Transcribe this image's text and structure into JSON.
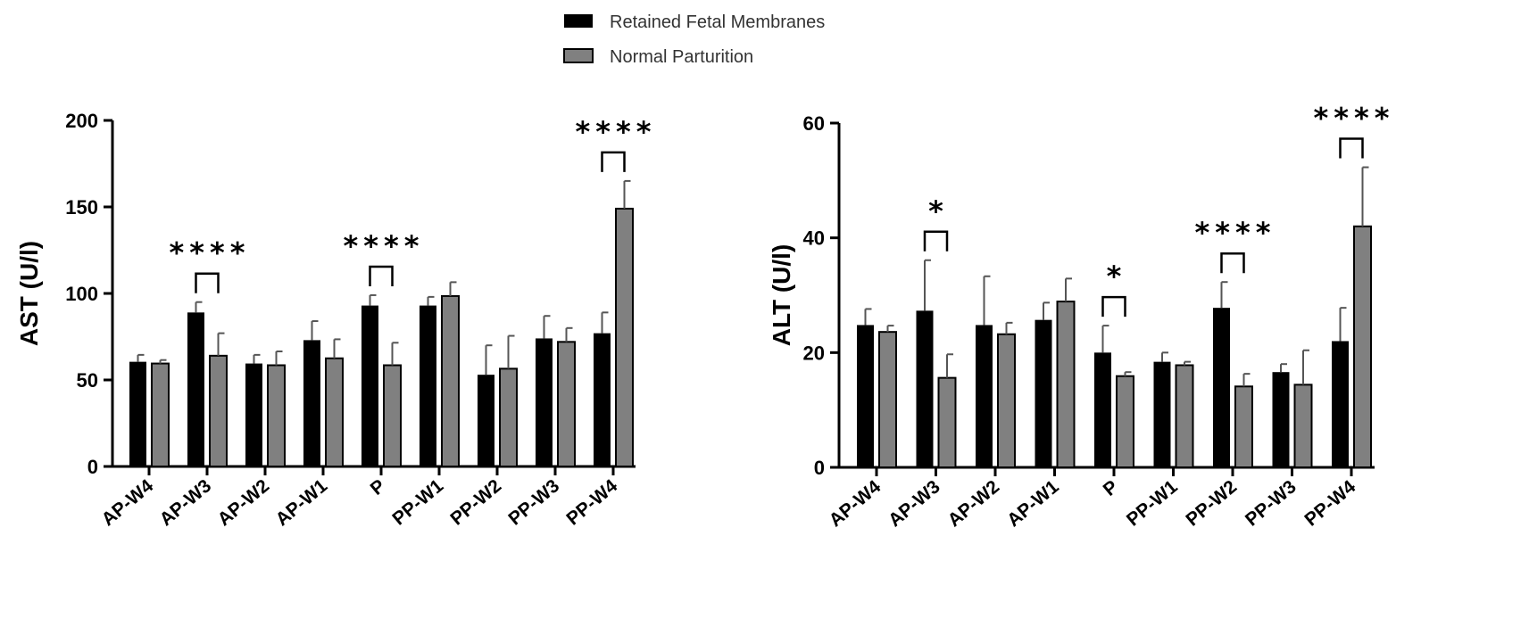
{
  "legend": {
    "items": [
      {
        "label": "Retained Fetal Membranes",
        "color": "#000000"
      },
      {
        "label": "Normal Parturition",
        "color": "#808080"
      }
    ],
    "placement": "top-center"
  },
  "chart_data": [
    {
      "type": "bar",
      "categories": [
        "AP-W4",
        "AP-W3",
        "AP-W2",
        "AP-W1",
        "P",
        "PP-W1",
        "PP-W2",
        "PP-W3",
        "PP-W4"
      ],
      "ylabel": "AST (U/l)",
      "ylim": [
        0,
        200
      ],
      "yticks": [
        "0",
        "50",
        "100",
        "150",
        "200"
      ],
      "series": [
        {
          "name": "Retained Fetal Membranes",
          "color": "#000000",
          "values": [
            60.5,
            89,
            59.5,
            73,
            93,
            93,
            53,
            74,
            77
          ],
          "errors": [
            4,
            6,
            5,
            11,
            6,
            5,
            17,
            13,
            12
          ]
        },
        {
          "name": "Normal Parturition",
          "color": "#808080",
          "values": [
            59.5,
            64,
            58.5,
            62.5,
            58.5,
            98.5,
            56.5,
            72,
            149
          ],
          "errors": [
            2,
            13,
            8,
            11,
            13,
            8,
            19,
            8,
            16
          ]
        }
      ],
      "significance": [
        {
          "category": "AP-W3",
          "label": "****"
        },
        {
          "category": "P",
          "label": "****"
        },
        {
          "category": "PP-W4",
          "label": "****"
        }
      ]
    },
    {
      "type": "bar",
      "categories": [
        "AP-W4",
        "AP-W3",
        "AP-W2",
        "AP-W1",
        "P",
        "PP-W1",
        "PP-W2",
        "PP-W3",
        "PP-W4"
      ],
      "ylabel": "ALT (U/l)",
      "ylim": [
        0,
        60
      ],
      "yticks": [
        "0",
        "20",
        "40",
        "60"
      ],
      "series": [
        {
          "name": "Retained Fetal Membranes",
          "color": "#000000",
          "values": [
            24.8,
            27.3,
            24.8,
            25.7,
            20,
            18.4,
            27.8,
            16.6,
            22
          ],
          "errors": [
            2.8,
            8.8,
            8.5,
            3,
            4.7,
            1.6,
            4.5,
            1.4,
            5.8
          ]
        },
        {
          "name": "Normal Parturition",
          "color": "#808080",
          "values": [
            23.6,
            15.6,
            23.2,
            28.9,
            15.9,
            17.8,
            14.1,
            14.4,
            42
          ],
          "errors": [
            1.1,
            4.1,
            2,
            4,
            0.7,
            0.6,
            2.2,
            6,
            10.3
          ]
        }
      ],
      "significance": [
        {
          "category": "AP-W3",
          "label": "*"
        },
        {
          "category": "P",
          "label": "*"
        },
        {
          "category": "PP-W2",
          "label": "****"
        },
        {
          "category": "PP-W4",
          "label": "****"
        }
      ]
    }
  ]
}
